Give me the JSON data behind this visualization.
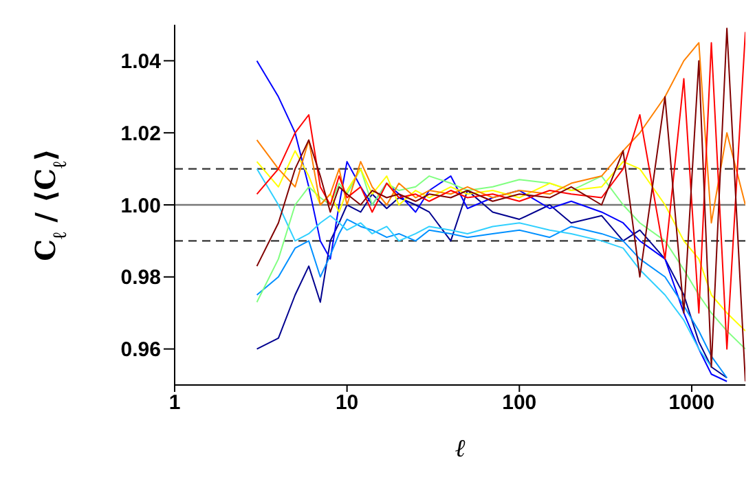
{
  "chart_data": {
    "type": "line",
    "xlabel": "ℓ",
    "ylabel": "C$_{ℓ}$ / ⟨C$_{ℓ}$⟩",
    "log": "x",
    "marker": "none",
    "line_style": "solid",
    "x": [
      3,
      4,
      5,
      6,
      7,
      8,
      9,
      10,
      12,
      14,
      17,
      20,
      25,
      30,
      40,
      50,
      70,
      100,
      150,
      200,
      300,
      400,
      500,
      700,
      900,
      1100,
      1300,
      1600,
      2048
    ],
    "xlim": [
      1,
      2048
    ],
    "xticks": [
      1,
      10,
      100,
      1000
    ],
    "ylim": [
      0.95,
      1.05
    ],
    "yticks": [
      {
        "value": 0.96,
        "label": "0.96"
      },
      {
        "value": 0.98,
        "label": "0.98"
      },
      {
        "value": 1.0,
        "label": "1.00"
      },
      {
        "value": 1.02,
        "label": "1.02"
      },
      {
        "value": 1.04,
        "label": "1.04"
      }
    ],
    "series": [
      {
        "color": "#00008f",
        "values": [
          0.96,
          0.963,
          0.975,
          0.983,
          0.973,
          0.99,
          0.995,
          1.0,
          0.998,
          1.003,
          0.999,
          1.002,
          1.0,
          0.998,
          0.99,
          1.004,
          0.998,
          0.996,
          1.0,
          0.995,
          0.997,
          0.99,
          0.993,
          0.985,
          0.975,
          0.962,
          0.955,
          0.952,
          null
        ]
      },
      {
        "color": "#0000ff",
        "values": [
          1.04,
          1.03,
          1.02,
          1.005,
          0.99,
          0.985,
          1.0,
          1.012,
          1.005,
          1.0,
          1.006,
          1.003,
          0.998,
          1.004,
          1.008,
          0.999,
          1.002,
          1.004,
          0.999,
          1.001,
          0.998,
          0.995,
          0.99,
          0.985,
          0.97,
          0.96,
          0.953,
          0.951,
          null
        ]
      },
      {
        "color": "#0090ff",
        "values": [
          0.975,
          0.98,
          0.988,
          0.99,
          0.98,
          0.986,
          0.992,
          0.996,
          0.994,
          0.993,
          0.991,
          0.992,
          0.99,
          0.993,
          0.992,
          0.991,
          0.992,
          0.993,
          0.991,
          0.994,
          0.992,
          0.99,
          0.985,
          0.98,
          0.972,
          0.965,
          0.958,
          0.952,
          null
        ]
      },
      {
        "color": "#30d0ff",
        "values": [
          1.01,
          1.0,
          0.99,
          0.992,
          0.995,
          0.997,
          0.995,
          0.993,
          0.995,
          0.992,
          0.994,
          0.99,
          0.992,
          0.994,
          0.993,
          0.992,
          0.994,
          0.995,
          0.993,
          0.992,
          0.99,
          0.988,
          0.982,
          0.975,
          0.968,
          0.96,
          0.955,
          null,
          null
        ]
      },
      {
        "color": "#80ff80",
        "values": [
          0.973,
          0.985,
          1.0,
          1.005,
          1.002,
          1.0,
          1.006,
          1.003,
          1.01,
          1.0,
          1.006,
          1.004,
          1.005,
          1.008,
          1.006,
          1.004,
          1.005,
          1.007,
          1.006,
          1.004,
          1.008,
          1.0,
          0.995,
          0.99,
          0.982,
          0.975,
          0.97,
          0.965,
          0.96
        ]
      },
      {
        "color": "#ffff00",
        "values": [
          1.012,
          1.005,
          1.015,
          1.008,
          1.0,
          1.003,
          0.998,
          1.004,
          1.01,
          1.003,
          1.008,
          1.0,
          1.004,
          1.002,
          1.005,
          1.003,
          1.004,
          1.002,
          1.006,
          1.004,
          1.005,
          1.012,
          1.01,
          1.0,
          0.99,
          0.985,
          0.975,
          0.97,
          0.965
        ]
      },
      {
        "color": "#ff8000",
        "values": [
          1.018,
          1.01,
          1.005,
          1.018,
          1.0,
          1.003,
          1.01,
          1.0,
          1.012,
          1.005,
          1.0,
          1.006,
          1.002,
          1.004,
          1.003,
          1.005,
          1.002,
          1.004,
          1.003,
          1.006,
          1.008,
          1.015,
          1.02,
          1.03,
          1.04,
          1.045,
          0.995,
          1.02,
          1.0
        ]
      },
      {
        "color": "#ff0000",
        "values": [
          1.003,
          1.01,
          1.02,
          1.025,
          1.005,
          1.0,
          1.008,
          1.002,
          1.005,
          0.998,
          1.006,
          1.002,
          1.003,
          1.001,
          1.004,
          1.002,
          1.003,
          1.001,
          1.004,
          1.003,
          1.002,
          1.01,
          1.025,
          0.985,
          1.035,
          0.97,
          1.045,
          0.96,
          1.048
        ]
      },
      {
        "color": "#800000",
        "values": [
          0.983,
          0.995,
          1.01,
          1.018,
          1.008,
          0.998,
          1.005,
          1.003,
          1.0,
          1.004,
          1.002,
          1.003,
          1.001,
          1.003,
          1.002,
          1.004,
          1.001,
          1.003,
          1.002,
          1.005,
          1.0,
          1.015,
          0.98,
          1.03,
          0.97,
          1.04,
          0.955,
          1.049,
          0.951
        ]
      }
    ],
    "ref_lines": [
      {
        "axis": "y",
        "value": 1.01,
        "color": "#333333",
        "line_style": "dashed"
      },
      {
        "axis": "y",
        "value": 0.99,
        "color": "#333333",
        "line_style": "dashed"
      },
      {
        "axis": "y",
        "value": 1.0,
        "color": "#777777",
        "line_style": "solid"
      }
    ]
  }
}
